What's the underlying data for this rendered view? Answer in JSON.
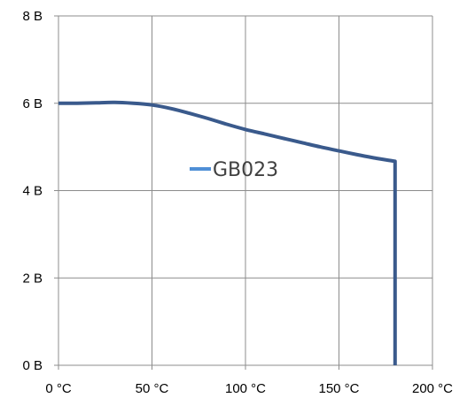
{
  "chart_data": {
    "type": "line",
    "title": "",
    "xlabel": "",
    "ylabel": "",
    "xlim": [
      0,
      200
    ],
    "ylim": [
      0,
      8
    ],
    "x_ticks": [
      0,
      50,
      100,
      150,
      200
    ],
    "y_ticks": [
      0,
      2,
      4,
      6,
      8
    ],
    "x_tick_labels": [
      "0 °C",
      "50 °C",
      "100 °C",
      "150 °C",
      "200 °C"
    ],
    "y_tick_labels": [
      "0 В",
      "2 В",
      "4 В",
      "6 В",
      "8 В"
    ],
    "grid": true,
    "legend_position": "center",
    "series": [
      {
        "name": "GB023",
        "color": "#3a5a8c",
        "legend_color": "#4f8fd6",
        "x": [
          0,
          10,
          20,
          30,
          40,
          50,
          60,
          70,
          80,
          90,
          100,
          110,
          120,
          130,
          140,
          150,
          160,
          170,
          180,
          180
        ],
        "y": [
          6.0,
          6.0,
          6.01,
          6.02,
          6.0,
          5.96,
          5.88,
          5.77,
          5.65,
          5.52,
          5.4,
          5.3,
          5.2,
          5.1,
          5.0,
          4.91,
          4.82,
          4.74,
          4.67,
          0.0
        ]
      }
    ]
  }
}
